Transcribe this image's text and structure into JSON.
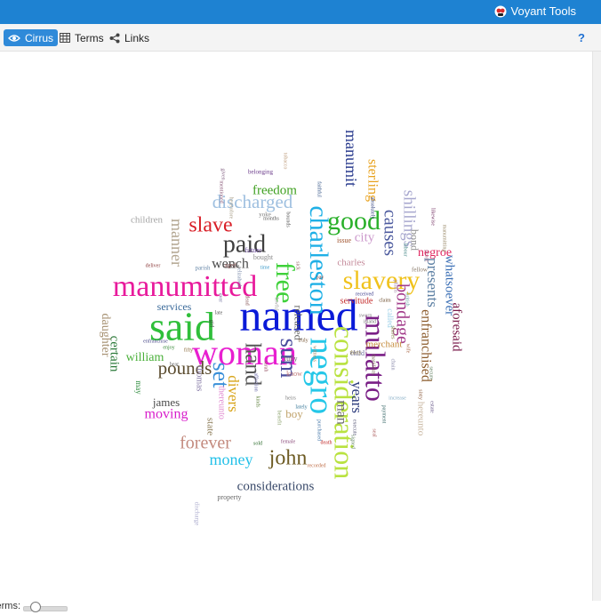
{
  "app": {
    "title": "Voyant Tools"
  },
  "toolbar": {
    "tabs": [
      {
        "label": "Cirrus",
        "icon": "eye-icon",
        "active": true
      },
      {
        "label": "Terms",
        "icon": "table-icon",
        "active": false
      },
      {
        "label": "Links",
        "icon": "share-nodes-icon",
        "active": false
      }
    ],
    "help_label": "?"
  },
  "bottom": {
    "terms_label": "Terms:",
    "terms_slider_fraction": 0.2
  },
  "colors": {
    "topbar": "#1e82d2",
    "active_tab": "#2f8ad9"
  },
  "cloud": [
    {
      "t": "named",
      "c": "#0a1ad8",
      "a": 0
    },
    {
      "t": "said",
      "c": "#2fbf3a",
      "a": 0
    },
    {
      "t": "woman",
      "c": "#e81fd0",
      "a": 0
    },
    {
      "t": "manumitted",
      "c": "#e81a9c",
      "a": 0
    },
    {
      "t": "negro",
      "c": "#25c7e8",
      "a": 90
    },
    {
      "t": "consideration",
      "c": "#b9e240",
      "a": 90
    },
    {
      "t": "charleston",
      "c": "#1fb0e6",
      "a": 90
    },
    {
      "t": "free",
      "c": "#3fd13a",
      "a": 90
    },
    {
      "t": "slavery",
      "c": "#f0c21c",
      "a": 0
    },
    {
      "t": "mulatto",
      "c": "#7a1f86",
      "a": 90
    },
    {
      "t": "good",
      "c": "#2ab02a",
      "a": 0
    },
    {
      "t": "paid",
      "c": "#3f3f3f",
      "a": 0
    },
    {
      "t": "slave",
      "c": "#d81d25",
      "a": 0
    },
    {
      "t": "sum",
      "c": "#4b4e9e",
      "a": 90
    },
    {
      "t": "hand",
      "c": "#565656",
      "a": 90
    },
    {
      "t": "set",
      "c": "#3a8fd8",
      "a": 90
    },
    {
      "t": "pounds",
      "c": "#5a4b2e",
      "a": 0
    },
    {
      "t": "john",
      "c": "#6d5b23",
      "a": 0
    },
    {
      "t": "forever",
      "c": "#c38a7e",
      "a": 0
    },
    {
      "t": "money",
      "c": "#22c0e8",
      "a": 0
    },
    {
      "t": "moving",
      "c": "#d81ccb",
      "a": 0
    },
    {
      "t": "discharged",
      "c": "#9fc0e0",
      "a": 0
    },
    {
      "t": "manner",
      "c": "#b2a590",
      "a": 90
    },
    {
      "t": "wench",
      "c": "#4a4a4a",
      "a": 0
    },
    {
      "t": "causes",
      "c": "#4c5a9e",
      "a": 90
    },
    {
      "t": "shillings",
      "c": "#a8a8cf",
      "a": 90
    },
    {
      "t": "manumit",
      "c": "#2b3d8f",
      "a": 90
    },
    {
      "t": "sterling",
      "c": "#e8a11c",
      "a": 90
    },
    {
      "t": "freedom",
      "c": "#3fa020",
      "a": 0
    },
    {
      "t": "bondage",
      "c": "#a23b8a",
      "a": 90
    },
    {
      "t": "presents",
      "c": "#5c7fa3",
      "a": 90
    },
    {
      "t": "enfranchised",
      "c": "#8b5a2b",
      "a": 90
    },
    {
      "t": "whatsoever",
      "c": "#3b6fb5",
      "a": 90
    },
    {
      "t": "negroe",
      "c": "#e0245e",
      "a": 0
    },
    {
      "t": "aforesaid",
      "c": "#7a1a4a",
      "a": 90
    },
    {
      "t": "years",
      "c": "#2d3c7d",
      "a": 90
    },
    {
      "t": "man",
      "c": "#6a6a6a",
      "a": 90
    },
    {
      "t": "divers",
      "c": "#d8a51c",
      "a": 90
    },
    {
      "t": "city",
      "c": "#cc99cc",
      "a": 0
    },
    {
      "t": "considerations",
      "c": "#3a4a6a",
      "a": 0
    },
    {
      "t": "william",
      "c": "#4ab03a",
      "a": 0
    },
    {
      "t": "certain",
      "c": "#2b7a3a",
      "a": 90
    },
    {
      "t": "daughter",
      "c": "#a58f70",
      "a": 90
    },
    {
      "t": "james",
      "c": "#4a4a4a",
      "a": 0
    },
    {
      "t": "services",
      "c": "#3a6a9a",
      "a": 0
    },
    {
      "t": "children",
      "c": "#a5a5a5",
      "a": 0
    },
    {
      "t": "boy",
      "c": "#c0a26a",
      "a": 0
    },
    {
      "t": "state",
      "c": "#8a7a55",
      "a": 90
    },
    {
      "t": "released",
      "c": "#5a5a5a",
      "a": 90
    },
    {
      "t": "servitude",
      "c": "#c42b2b",
      "a": 0
    },
    {
      "t": "merchant",
      "c": "#c48a3a",
      "a": 0
    },
    {
      "t": "charles",
      "c": "#c48a9a",
      "a": 0
    },
    {
      "t": "bond",
      "c": "#8a8a8a",
      "a": 90
    },
    {
      "t": "hereunto",
      "c": "#c8b6a0",
      "a": 90
    },
    {
      "t": "thomas",
      "c": "#8b7faa",
      "a": 90
    },
    {
      "t": "thereunto",
      "c": "#e08ad0",
      "a": 90
    },
    {
      "t": "called",
      "c": "#9ad0e8",
      "a": 90
    },
    {
      "t": "property",
      "c": "#6a6a6a",
      "a": 0
    },
    {
      "t": "issue",
      "c": "#a0522d",
      "a": 0
    },
    {
      "t": "future",
      "c": "#7a5aaa",
      "a": 0
    },
    {
      "t": "bought",
      "c": "#8a8a8a",
      "a": 0
    },
    {
      "t": "fully",
      "c": "#6a6a6a",
      "a": 0
    },
    {
      "t": "know",
      "c": "#c07a7a",
      "a": 0
    },
    {
      "t": "may",
      "c": "#2a8a3a",
      "a": 90
    },
    {
      "t": "yoke",
      "c": "#7a7a7a",
      "a": 0
    },
    {
      "t": "belonging",
      "c": "#6a3a8a",
      "a": 0
    },
    {
      "t": "discharge",
      "c": "#b0b0d0",
      "a": 90
    },
    {
      "t": "child",
      "c": "#6a6a9a",
      "a": 0
    },
    {
      "t": "aged",
      "c": "#7a3a3a",
      "a": 0
    },
    {
      "t": "fellow",
      "c": "#8a7a6a",
      "a": 0
    },
    {
      "t": "parish",
      "c": "#6a8aaa",
      "a": 0
    },
    {
      "t": "heirs",
      "c": "#7a7a7a",
      "a": 0
    },
    {
      "t": "death",
      "c": "#c02a2a",
      "a": 0
    },
    {
      "t": "island",
      "c": "#7a7a7a",
      "a": 0
    },
    {
      "t": "lately",
      "c": "#3a7a9a",
      "a": 0
    },
    {
      "t": "thirty",
      "c": "#7a6a3a",
      "a": 0
    },
    {
      "t": "female",
      "c": "#8a4a7a",
      "a": 0
    },
    {
      "t": "sold",
      "c": "#2a6a2a",
      "a": 0
    },
    {
      "t": "late",
      "c": "#5a5a5a",
      "a": 0
    },
    {
      "t": "deliver",
      "c": "#8a3a3a",
      "a": 0
    },
    {
      "t": "enfranchise",
      "c": "#4a4a8a",
      "a": 0
    },
    {
      "t": "bear",
      "c": "#6a6a6a",
      "a": 0
    },
    {
      "t": "fifty",
      "c": "#8a6a3a",
      "a": 0
    },
    {
      "t": "robert",
      "c": "#5a5a5a",
      "a": 0
    },
    {
      "t": "received",
      "c": "#3a3a8a",
      "a": 0
    },
    {
      "t": "claim",
      "c": "#6a4a2a",
      "a": 0
    },
    {
      "t": "months",
      "c": "#5a5a5a",
      "a": 0
    },
    {
      "t": "time",
      "c": "#3a9aca",
      "a": 0
    },
    {
      "t": "recorded",
      "c": "#c0704a",
      "a": 0
    },
    {
      "t": "sworn",
      "c": "#8a8a8a",
      "a": 0
    },
    {
      "t": "pay",
      "c": "#6a3a3a",
      "a": 0
    },
    {
      "t": "increase",
      "c": "#8ab0c8",
      "a": 0
    },
    {
      "t": "enjoy",
      "c": "#3a8a3a",
      "a": 0
    },
    {
      "t": "truly",
      "c": "#7a5a3a",
      "a": 0
    },
    {
      "t": "faithful",
      "c": "#3a5a8a",
      "a": 90
    },
    {
      "t": "mentioned",
      "c": "#8a5a7a",
      "a": 90
    },
    {
      "t": "shares",
      "c": "#7a7a3a",
      "a": 90
    },
    {
      "t": "tobacco",
      "c": "#c0a080",
      "a": 90
    },
    {
      "t": "bounds",
      "c": "#5a5a5a",
      "a": 90
    },
    {
      "t": "sick",
      "c": "#9a6a6a",
      "a": 90
    },
    {
      "t": "ever",
      "c": "#6a6a9a",
      "a": 90
    },
    {
      "t": "girl",
      "c": "#3a3a3a",
      "a": 90
    },
    {
      "t": "dead",
      "c": "#8a5a5a",
      "a": 90
    },
    {
      "t": "lawful",
      "c": "#9a9a9a",
      "a": 90
    },
    {
      "t": "purchased",
      "c": "#4a7aaa",
      "a": 90
    },
    {
      "t": "kinds",
      "c": "#6a8a4a",
      "a": 90
    },
    {
      "t": "manifests",
      "c": "#7a6a5a",
      "a": 90
    },
    {
      "t": "chain",
      "c": "#8a8aaa",
      "a": 90
    },
    {
      "t": "wife",
      "c": "#aa6a4a",
      "a": 90
    },
    {
      "t": "secure",
      "c": "#5a7a5a",
      "a": 90
    },
    {
      "t": "estate",
      "c": "#6a5a8a",
      "a": 90
    },
    {
      "t": "sixty",
      "c": "#8a5a3a",
      "a": 90
    },
    {
      "t": "payment",
      "c": "#3a6a6a",
      "a": 90
    },
    {
      "t": "likewise",
      "c": "#7a3a6a",
      "a": 90
    },
    {
      "t": "manumitting",
      "c": "#9a8a6a",
      "a": 90
    },
    {
      "t": "labour",
      "c": "#4a8a8a",
      "a": 90
    },
    {
      "t": "absolutely",
      "c": "#2a3a7a",
      "a": 90
    },
    {
      "t": "given",
      "c": "#8a6a8a",
      "a": 90
    },
    {
      "t": "heretofore",
      "c": "#aaa08a",
      "a": 90
    },
    {
      "t": "elizabeth",
      "c": "#7a8aaa",
      "a": 90
    },
    {
      "t": "sarah",
      "c": "#9a5a6a",
      "a": 90
    },
    {
      "t": "affection",
      "c": "#6a6aaa",
      "a": 90
    },
    {
      "t": "benefit",
      "c": "#8aa06a",
      "a": 90
    },
    {
      "t": "witness",
      "c": "#aa8a6a",
      "a": 90
    },
    {
      "t": "execute",
      "c": "#5a5a7a",
      "a": 90
    },
    {
      "t": "seal",
      "c": "#aa5a5a",
      "a": 90
    },
    {
      "t": "signed",
      "c": "#6a8a6a",
      "a": 90
    },
    {
      "t": "phillis",
      "c": "#aa8aaa",
      "a": 90
    },
    {
      "t": "british",
      "c": "#6aaaaa",
      "a": 90
    },
    {
      "t": "peace",
      "c": "#aa6a8a",
      "a": 90
    },
    {
      "t": "whereas",
      "c": "#8a8a5a",
      "a": 90
    },
    {
      "t": "carolina",
      "c": "#aa7a3a",
      "a": 90
    }
  ]
}
